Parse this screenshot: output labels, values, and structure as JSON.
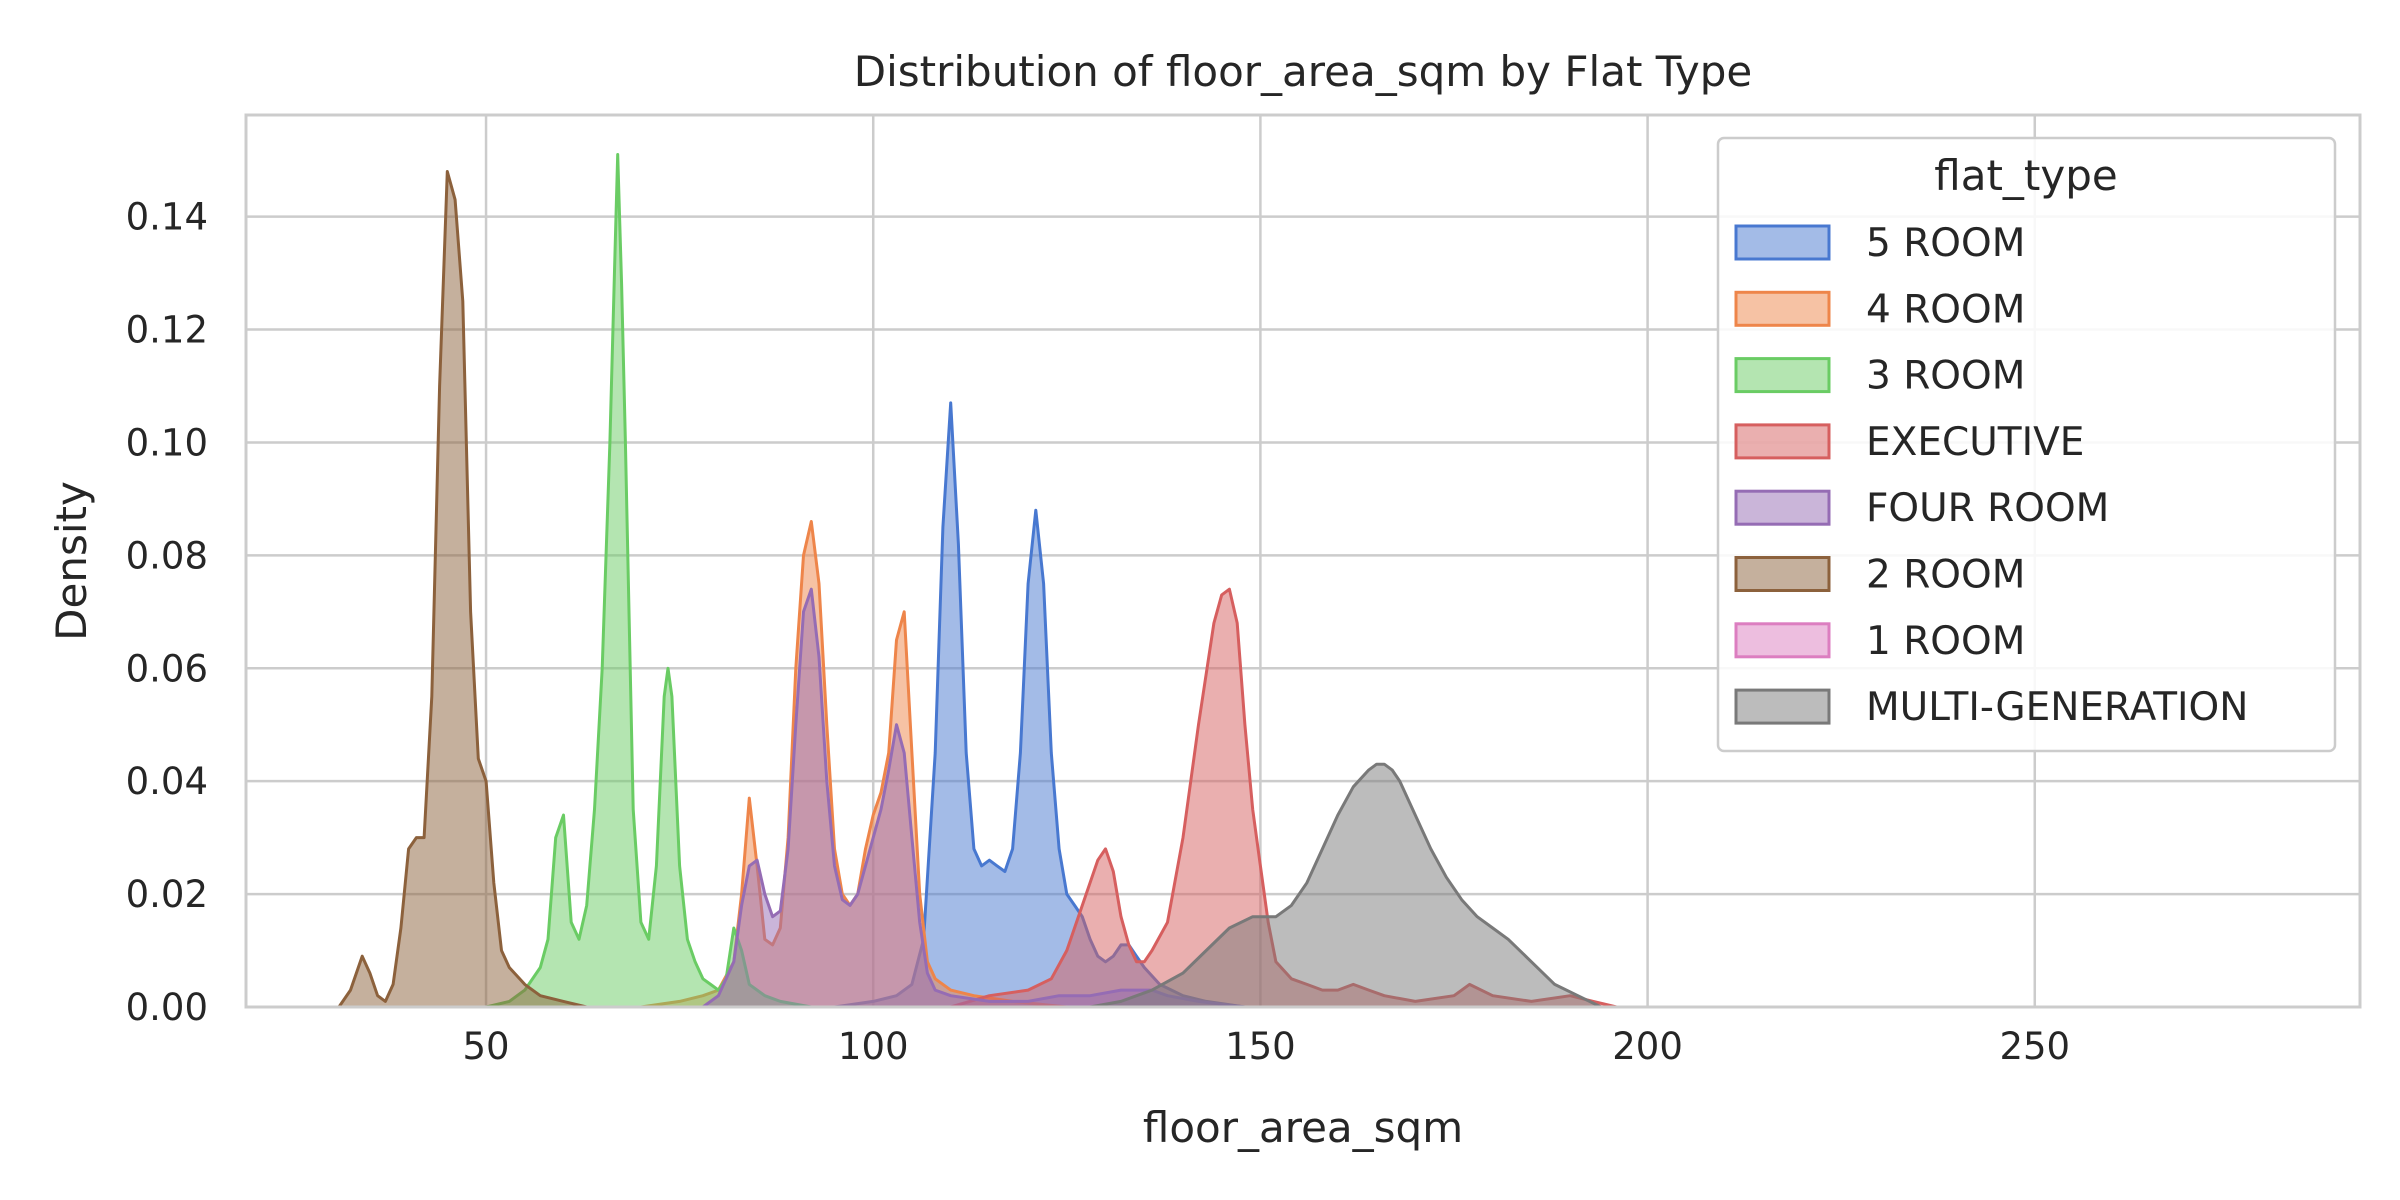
{
  "chart_data": {
    "type": "area",
    "title": "Distribution of floor_area_sqm by Flat Type",
    "xlabel": "floor_area_sqm",
    "ylabel": "Density",
    "xlim": [
      19,
      292
    ],
    "ylim": [
      0,
      0.158
    ],
    "x_ticks": [
      50,
      100,
      150,
      200,
      250
    ],
    "x_tick_labels": [
      "50",
      "100",
      "150",
      "200",
      "250"
    ],
    "y_ticks": [
      0,
      0.02,
      0.04,
      0.06,
      0.08,
      0.1,
      0.12,
      0.14
    ],
    "y_tick_labels": [
      "0.00",
      "0.02",
      "0.04",
      "0.06",
      "0.08",
      "0.10",
      "0.12",
      "0.14"
    ],
    "grid": true,
    "legend": {
      "title": "flat_type",
      "placement": "top-right"
    },
    "series": [
      {
        "name": "5 ROOM",
        "color": "#4878d0",
        "points": [
          [
            95,
            0
          ],
          [
            100,
            0.001
          ],
          [
            103,
            0.002
          ],
          [
            105,
            0.004
          ],
          [
            106.5,
            0.012
          ],
          [
            108,
            0.045
          ],
          [
            109,
            0.085
          ],
          [
            110,
            0.107
          ],
          [
            111,
            0.082
          ],
          [
            112,
            0.045
          ],
          [
            113,
            0.028
          ],
          [
            114,
            0.025
          ],
          [
            115,
            0.026
          ],
          [
            116,
            0.025
          ],
          [
            117,
            0.024
          ],
          [
            118,
            0.028
          ],
          [
            119,
            0.045
          ],
          [
            120,
            0.075
          ],
          [
            121,
            0.088
          ],
          [
            122,
            0.075
          ],
          [
            123,
            0.045
          ],
          [
            124,
            0.028
          ],
          [
            125,
            0.02
          ],
          [
            126,
            0.018
          ],
          [
            127,
            0.016
          ],
          [
            128,
            0.012
          ],
          [
            129,
            0.009
          ],
          [
            130,
            0.008
          ],
          [
            131,
            0.009
          ],
          [
            132,
            0.011
          ],
          [
            133,
            0.011
          ],
          [
            134,
            0.009
          ],
          [
            135,
            0.007
          ],
          [
            137,
            0.004
          ],
          [
            140,
            0.002
          ],
          [
            143,
            0.001
          ],
          [
            148,
            0
          ]
        ]
      },
      {
        "name": "4 ROOM",
        "color": "#ee854a",
        "points": [
          [
            70,
            0
          ],
          [
            75,
            0.001
          ],
          [
            78,
            0.002
          ],
          [
            80,
            0.003
          ],
          [
            82,
            0.008
          ],
          [
            83,
            0.02
          ],
          [
            84,
            0.037
          ],
          [
            85,
            0.025
          ],
          [
            86,
            0.012
          ],
          [
            87,
            0.011
          ],
          [
            88,
            0.014
          ],
          [
            89,
            0.03
          ],
          [
            90,
            0.06
          ],
          [
            91,
            0.08
          ],
          [
            92,
            0.086
          ],
          [
            93,
            0.075
          ],
          [
            94,
            0.05
          ],
          [
            95,
            0.028
          ],
          [
            96,
            0.02
          ],
          [
            97,
            0.018
          ],
          [
            98,
            0.02
          ],
          [
            99,
            0.028
          ],
          [
            100,
            0.034
          ],
          [
            101,
            0.038
          ],
          [
            102,
            0.045
          ],
          [
            103,
            0.065
          ],
          [
            104,
            0.07
          ],
          [
            105,
            0.045
          ],
          [
            106,
            0.02
          ],
          [
            107,
            0.008
          ],
          [
            108,
            0.005
          ],
          [
            110,
            0.003
          ],
          [
            113,
            0.002
          ],
          [
            118,
            0.001
          ],
          [
            125,
            0
          ]
        ]
      },
      {
        "name": "3 ROOM",
        "color": "#6acc64",
        "points": [
          [
            50,
            0
          ],
          [
            53,
            0.001
          ],
          [
            55,
            0.003
          ],
          [
            57,
            0.007
          ],
          [
            58,
            0.012
          ],
          [
            59,
            0.03
          ],
          [
            60,
            0.034
          ],
          [
            61,
            0.015
          ],
          [
            62,
            0.012
          ],
          [
            63,
            0.018
          ],
          [
            64,
            0.035
          ],
          [
            65,
            0.06
          ],
          [
            66,
            0.1
          ],
          [
            66.6,
            0.131
          ],
          [
            67,
            0.151
          ],
          [
            67.5,
            0.128
          ],
          [
            68,
            0.1
          ],
          [
            69,
            0.035
          ],
          [
            70,
            0.015
          ],
          [
            71,
            0.012
          ],
          [
            72,
            0.025
          ],
          [
            73,
            0.055
          ],
          [
            73.5,
            0.06
          ],
          [
            74,
            0.055
          ],
          [
            75,
            0.025
          ],
          [
            76,
            0.012
          ],
          [
            77,
            0.008
          ],
          [
            78,
            0.005
          ],
          [
            79,
            0.004
          ],
          [
            80,
            0.003
          ],
          [
            81,
            0.005
          ],
          [
            82,
            0.014
          ],
          [
            83,
            0.01
          ],
          [
            84,
            0.004
          ],
          [
            86,
            0.002
          ],
          [
            88,
            0.001
          ],
          [
            92,
            0
          ]
        ]
      },
      {
        "name": "EXECUTIVE",
        "color": "#d65f5f",
        "points": [
          [
            110,
            0
          ],
          [
            115,
            0.002
          ],
          [
            120,
            0.003
          ],
          [
            123,
            0.005
          ],
          [
            125,
            0.01
          ],
          [
            127,
            0.018
          ],
          [
            129,
            0.026
          ],
          [
            130,
            0.028
          ],
          [
            131,
            0.024
          ],
          [
            132,
            0.016
          ],
          [
            133,
            0.011
          ],
          [
            134,
            0.008
          ],
          [
            135,
            0.008
          ],
          [
            136,
            0.01
          ],
          [
            138,
            0.015
          ],
          [
            140,
            0.03
          ],
          [
            142,
            0.05
          ],
          [
            144,
            0.068
          ],
          [
            145,
            0.073
          ],
          [
            146,
            0.074
          ],
          [
            147,
            0.068
          ],
          [
            148,
            0.05
          ],
          [
            149,
            0.035
          ],
          [
            150,
            0.025
          ],
          [
            151,
            0.015
          ],
          [
            152,
            0.008
          ],
          [
            154,
            0.005
          ],
          [
            156,
            0.004
          ],
          [
            158,
            0.003
          ],
          [
            160,
            0.003
          ],
          [
            162,
            0.004
          ],
          [
            164,
            0.003
          ],
          [
            166,
            0.002
          ],
          [
            170,
            0.001
          ],
          [
            175,
            0.002
          ],
          [
            177,
            0.004
          ],
          [
            180,
            0.002
          ],
          [
            185,
            0.001
          ],
          [
            190,
            0.002
          ],
          [
            193,
            0.001
          ],
          [
            196,
            0
          ]
        ]
      },
      {
        "name": "FOUR ROOM",
        "color": "#956cb4",
        "points": [
          [
            78,
            0
          ],
          [
            80,
            0.002
          ],
          [
            82,
            0.008
          ],
          [
            83,
            0.018
          ],
          [
            84,
            0.025
          ],
          [
            85,
            0.026
          ],
          [
            86,
            0.02
          ],
          [
            87,
            0.016
          ],
          [
            88,
            0.017
          ],
          [
            89,
            0.028
          ],
          [
            90,
            0.05
          ],
          [
            91,
            0.07
          ],
          [
            92,
            0.074
          ],
          [
            93,
            0.062
          ],
          [
            94,
            0.04
          ],
          [
            95,
            0.025
          ],
          [
            96,
            0.019
          ],
          [
            97,
            0.018
          ],
          [
            98,
            0.02
          ],
          [
            99,
            0.025
          ],
          [
            100,
            0.03
          ],
          [
            101,
            0.035
          ],
          [
            102,
            0.042
          ],
          [
            103,
            0.05
          ],
          [
            104,
            0.045
          ],
          [
            105,
            0.03
          ],
          [
            106,
            0.015
          ],
          [
            107,
            0.006
          ],
          [
            108,
            0.003
          ],
          [
            110,
            0.002
          ],
          [
            115,
            0.001
          ],
          [
            120,
            0.001
          ],
          [
            124,
            0.002
          ],
          [
            128,
            0.002
          ],
          [
            132,
            0.003
          ],
          [
            136,
            0.003
          ],
          [
            138,
            0.002
          ],
          [
            142,
            0.001
          ],
          [
            148,
            0
          ]
        ]
      },
      {
        "name": "2 ROOM",
        "color": "#8c613c",
        "points": [
          [
            31,
            0
          ],
          [
            32.5,
            0.003
          ],
          [
            34,
            0.009
          ],
          [
            35,
            0.006
          ],
          [
            36,
            0.002
          ],
          [
            37,
            0.001
          ],
          [
            38,
            0.004
          ],
          [
            39,
            0.014
          ],
          [
            40,
            0.028
          ],
          [
            41,
            0.03
          ],
          [
            42,
            0.03
          ],
          [
            43,
            0.055
          ],
          [
            44,
            0.11
          ],
          [
            45,
            0.148
          ],
          [
            46,
            0.143
          ],
          [
            47,
            0.125
          ],
          [
            48,
            0.07
          ],
          [
            49,
            0.044
          ],
          [
            50,
            0.04
          ],
          [
            51,
            0.022
          ],
          [
            52,
            0.01
          ],
          [
            53,
            0.007
          ],
          [
            55,
            0.004
          ],
          [
            57,
            0.002
          ],
          [
            60,
            0.001
          ],
          [
            63,
            0
          ]
        ]
      },
      {
        "name": "1 ROOM",
        "color": "#dc7ec0",
        "points": []
      },
      {
        "name": "MULTI-GENERATION",
        "color": "#797979",
        "points": [
          [
            128,
            0
          ],
          [
            132,
            0.001
          ],
          [
            136,
            0.003
          ],
          [
            140,
            0.006
          ],
          [
            143,
            0.01
          ],
          [
            146,
            0.014
          ],
          [
            149,
            0.016
          ],
          [
            152,
            0.016
          ],
          [
            154,
            0.018
          ],
          [
            156,
            0.022
          ],
          [
            158,
            0.028
          ],
          [
            160,
            0.034
          ],
          [
            162,
            0.039
          ],
          [
            164,
            0.042
          ],
          [
            165,
            0.043
          ],
          [
            166,
            0.043
          ],
          [
            167,
            0.042
          ],
          [
            168,
            0.04
          ],
          [
            170,
            0.034
          ],
          [
            172,
            0.028
          ],
          [
            174,
            0.023
          ],
          [
            176,
            0.019
          ],
          [
            178,
            0.016
          ],
          [
            180,
            0.014
          ],
          [
            182,
            0.012
          ],
          [
            185,
            0.008
          ],
          [
            188,
            0.004
          ],
          [
            191,
            0.002
          ],
          [
            194,
            0
          ]
        ]
      }
    ]
  }
}
